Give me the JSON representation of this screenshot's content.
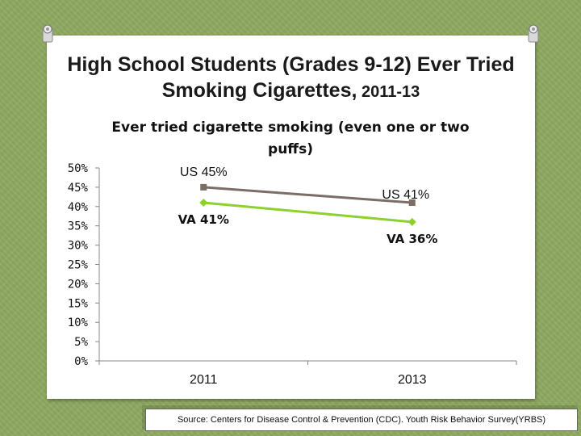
{
  "slide": {
    "title_main": "High School Students (Grades 9-12) Ever Tried Smoking Cigarettes,",
    "title_years": " 2011-13",
    "source": "Source: Centers for Disease Control & Prevention (CDC). Youth Risk Behavior Survey(YRBS)"
  },
  "colors": {
    "background": "#8fa960",
    "us_series": "#7b6e66",
    "va_series": "#8ed12f",
    "axis": "#888888"
  },
  "chart_data": {
    "type": "line",
    "title": "Ever tried cigarette smoking (even one or two puffs)",
    "title_lines": [
      "Ever tried cigarette smoking (even one or two",
      "puffs)"
    ],
    "categories": [
      "2011",
      "2013"
    ],
    "series": [
      {
        "name": "US",
        "values": [
          45,
          41
        ],
        "labels": [
          "US  45%",
          "US  41%"
        ],
        "color": "#7b6e66",
        "marker": "square"
      },
      {
        "name": "VA",
        "values": [
          41,
          36
        ],
        "labels": [
          "VA  41%",
          "VA  36%"
        ],
        "color": "#8ed12f",
        "marker": "diamond"
      }
    ],
    "ylim": [
      0,
      50
    ],
    "yticks": [
      0,
      5,
      10,
      15,
      20,
      25,
      30,
      35,
      40,
      45,
      50
    ],
    "ytick_labels": [
      "0%",
      "5%",
      "10%",
      "15%",
      "20%",
      "25%",
      "30%",
      "35%",
      "40%",
      "45%",
      "50%"
    ],
    "grid": false,
    "legend": "none"
  }
}
